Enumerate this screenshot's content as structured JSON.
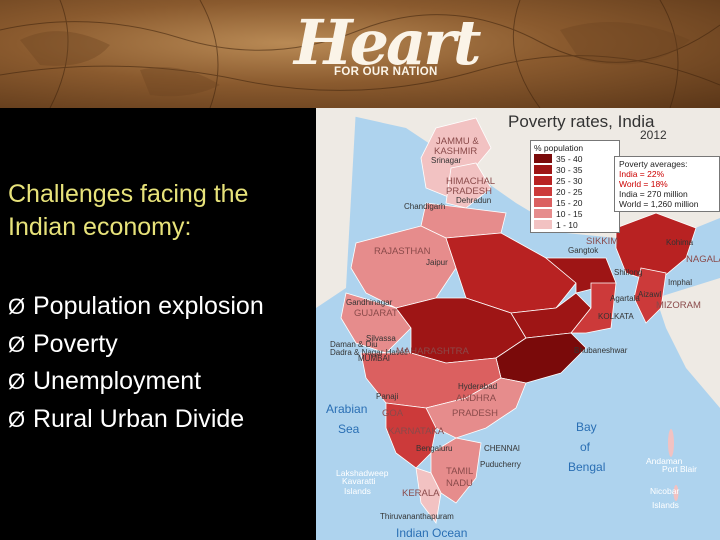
{
  "banner": {
    "logo_word": "Heart",
    "logo_subtitle": "FOR OUR NATION"
  },
  "slide": {
    "title": "Challenges facing the Indian economy:",
    "bullet_marker": "Ø",
    "bullets": [
      "Population explosion",
      "Poverty",
      "Unemployment",
      "Rural Urban Divide"
    ]
  },
  "map": {
    "title": "Poverty rates, India",
    "year": "2012",
    "legend": {
      "header": "% population",
      "entries": [
        {
          "label": "35 - 40",
          "color": "#7a0a0a"
        },
        {
          "label": "30 - 35",
          "color": "#9e1515"
        },
        {
          "label": "25 - 30",
          "color": "#b82222"
        },
        {
          "label": "20 - 25",
          "color": "#cc3a3a"
        },
        {
          "label": "15 - 20",
          "color": "#db6060"
        },
        {
          "label": "10 - 15",
          "color": "#e68c8c"
        },
        {
          "label": "1 - 10",
          "color": "#f2c2c2"
        }
      ]
    },
    "averages": {
      "header": "Poverty averages:",
      "line1": "India = 22%",
      "line2": "World = 18%",
      "line3": "India = 270 million",
      "line4": "World = 1,260 million"
    },
    "labels": {
      "jammu": "JAMMU &",
      "kashmir": "KASHMIR",
      "srinagar": "Srinagar",
      "himachal": "HIMACHAL",
      "pradesh_n": "PRADESH",
      "chandigarh": "Chandigarh",
      "dehradun": "Dehradun",
      "rajasthan": "RAJASTHAN",
      "jaipur": "Jaipur",
      "sikkim": "SIKKIM",
      "gangtok": "Gangtok",
      "shillong": "Shillong",
      "kohima": "Kohima",
      "nagaland": "NAGALAND",
      "imphal": "Imphal",
      "agartala": "Agartala",
      "mizoram": "MIZORAM",
      "aizawl": "Aizawl",
      "gandhinagar": "Gandhinagar",
      "gujarat": "GUJARAT",
      "daman": "Daman & Diu",
      "silvassa": "Silvassa",
      "dadra": "Dadra & Nagar Haveli",
      "mumbai": "MUMBAI",
      "maharashtra": "MAHARASHTRA",
      "kolkata": "KOLKATA",
      "bhubaneshwar": "Bhubaneshwar",
      "hyderabad": "Hyderabad",
      "andhra": "ANDHRA",
      "pradesh_s": "PRADESH",
      "panaji": "Panaji",
      "goa": "GOA",
      "karnataka": "KARNATAKA",
      "bengaluru": "Bengaluru",
      "chennai": "CHENNAI",
      "puducherry": "Puducherry",
      "tamil": "TAMIL",
      "nadu": "NADU",
      "lakshadweep": "Lakshadweep",
      "kavaratti": "Kavaratti",
      "islands_w": "Islands",
      "kerala": "KERALA",
      "thiruvananthapuram": "Thiruvananthapuram",
      "arabian": "Arabian",
      "sea": "Sea",
      "bay": "Bay",
      "of": "of",
      "bengal": "Bengal",
      "andaman": "Andaman",
      "port_blair": "Port Blair",
      "nicobar": "Nicobar",
      "islands_e": "Islands",
      "indian_ocean": "Indian Ocean"
    }
  }
}
